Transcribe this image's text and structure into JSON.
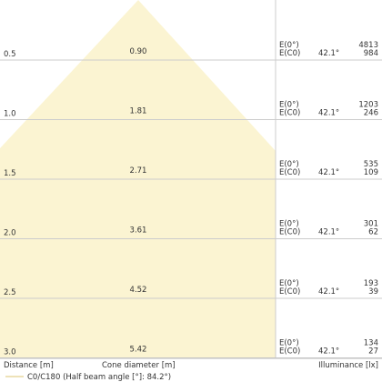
{
  "rows": [
    {
      "distance": "0.5",
      "diameter": "0.90",
      "e0_label": "E(0°)",
      "ec0_label": "E(C0)",
      "angle": "42.1°",
      "e0": "4813",
      "ec0": "984"
    },
    {
      "distance": "1.0",
      "diameter": "1.81",
      "e0_label": "E(0°)",
      "ec0_label": "E(C0)",
      "angle": "42.1°",
      "e0": "1203",
      "ec0": "246"
    },
    {
      "distance": "1.5",
      "diameter": "2.71",
      "e0_label": "E(0°)",
      "ec0_label": "E(C0)",
      "angle": "42.1°",
      "e0": "535",
      "ec0": "109"
    },
    {
      "distance": "2.0",
      "diameter": "3.61",
      "e0_label": "E(0°)",
      "ec0_label": "E(C0)",
      "angle": "42.1°",
      "e0": "301",
      "ec0": "62"
    },
    {
      "distance": "2.5",
      "diameter": "4.52",
      "e0_label": "E(0°)",
      "ec0_label": "E(C0)",
      "angle": "42.1°",
      "e0": "193",
      "ec0": "39"
    },
    {
      "distance": "3.0",
      "diameter": "5.42",
      "e0_label": "E(0°)",
      "ec0_label": "E(C0)",
      "angle": "42.1°",
      "e0": "134",
      "ec0": "27"
    }
  ],
  "footer": {
    "distance": "Distance [m]",
    "diameter": "Cone diameter [m]",
    "illuminance": "Illuminance [lx]"
  },
  "legend": "C0/C180 (Half beam angle [°]: 84.2°)"
}
